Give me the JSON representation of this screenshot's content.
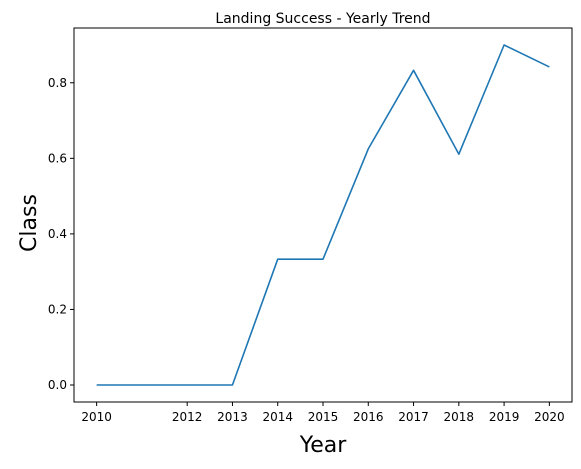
{
  "chart_data": {
    "type": "line",
    "title": "Landing Success - Yearly Trend",
    "xlabel": "Year",
    "ylabel": "Class",
    "x": [
      2010,
      2012,
      2013,
      2014,
      2015,
      2016,
      2017,
      2018,
      2019,
      2020
    ],
    "x_tick_labels": [
      "2010",
      "2012",
      "2013",
      "2014",
      "2015",
      "2016",
      "2017",
      "2018",
      "2019",
      "2020"
    ],
    "series": [
      {
        "values": [
          0.0,
          0.0,
          0.0,
          0.333,
          0.333,
          0.625,
          0.833,
          0.611,
          0.9,
          0.842
        ],
        "color": "#1f77b4"
      }
    ],
    "y_ticks": [
      0.0,
      0.2,
      0.4,
      0.6,
      0.8
    ],
    "y_tick_labels": [
      "0.0",
      "0.2",
      "0.4",
      "0.6",
      "0.8"
    ],
    "xlim": [
      2009.5,
      2020.5
    ],
    "ylim": [
      -0.045,
      0.945
    ],
    "grid": false,
    "legend": "none"
  }
}
